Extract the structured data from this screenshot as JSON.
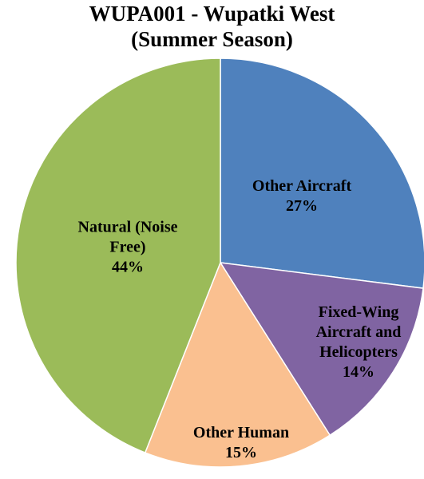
{
  "chart_data": {
    "type": "pie",
    "title": "WUPA001 - Wupatki West",
    "subtitle": "(Summer Season)",
    "categories": [
      "Other Aircraft",
      "Fixed-Wing Aircraft and Helicopters",
      "Other Human",
      "Natural (Noise Free)"
    ],
    "values": [
      27,
      14,
      15,
      44
    ],
    "value_labels": [
      "27%",
      "14%",
      "15%",
      "44%"
    ],
    "colors": [
      "#4f81bd",
      "#8064a2",
      "#fac090",
      "#9bbb59"
    ],
    "start_angle": 90,
    "clockwise": true
  }
}
